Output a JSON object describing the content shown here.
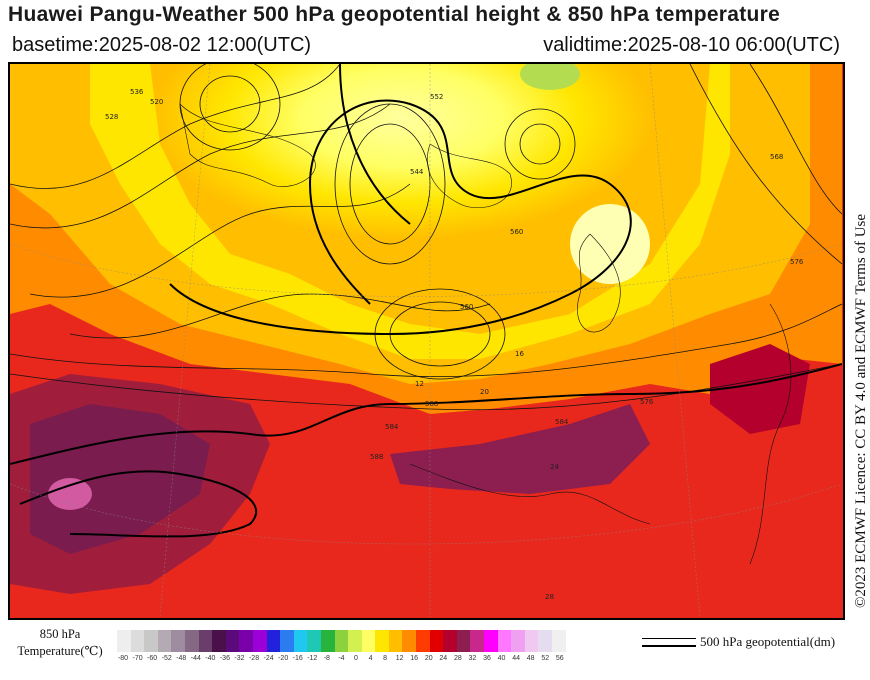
{
  "header": {
    "title": "Huawei Pangu-Weather 500 hPa geopotential height & 850 hPa temperature",
    "basetime": "basetime:2025-08-02 12:00(UTC)",
    "validtime": "validtime:2025-08-10 06:00(UTC)"
  },
  "credit": "©2023 ECMWF Licence: CC BY 4.0 and ECMWF Terms of Use",
  "legend": {
    "temperature_label_line1": "850 hPa",
    "temperature_label_line2": "Temperature(℃)",
    "geopotential_label": "500 hPa geopotential(dm)",
    "ticks": [
      "-80",
      "-70",
      "-60",
      "-52",
      "-48",
      "-44",
      "-40",
      "-36",
      "-32",
      "-28",
      "-24",
      "-20",
      "-16",
      "-12",
      "-8",
      "-4",
      "0",
      "4",
      "8",
      "12",
      "16",
      "20",
      "24",
      "28",
      "32",
      "36",
      "40",
      "44",
      "48",
      "52",
      "56"
    ],
    "colors": [
      "#eeeeee",
      "#dcdcdc",
      "#c8c8c8",
      "#b4aab4",
      "#a08ca0",
      "#846884",
      "#6a3e6a",
      "#4a104a",
      "#5a0a7a",
      "#7a00aa",
      "#9b00d6",
      "#2222dd",
      "#2a7cf0",
      "#1ec8f0",
      "#1ec8b4",
      "#28b43c",
      "#8cd23c",
      "#d2f050",
      "#ffff64",
      "#ffe600",
      "#ffbe00",
      "#ff8c00",
      "#ff3c00",
      "#e10000",
      "#b4002c",
      "#8c1e50",
      "#c8288c",
      "#ff00ff",
      "#ff78ff",
      "#f0a0f0",
      "#f0c8f0",
      "#e6dcf0",
      "#f0f0f0"
    ],
    "colors_used_note": ""
  },
  "map": {
    "contour_labels": [
      "552",
      "560",
      "568",
      "576",
      "584",
      "588",
      "544",
      "536",
      "520",
      "528",
      "560",
      "576",
      "584",
      "588",
      "12",
      "16",
      "20",
      "24",
      "28"
    ]
  }
}
